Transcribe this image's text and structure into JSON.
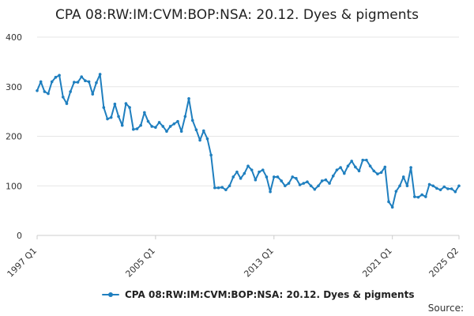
{
  "chart_data": {
    "type": "line",
    "title": "CPA 08:RW:IM:CVM:BOP:NSA: 20.12. Dyes & pigments",
    "xlabel": "",
    "ylabel": "",
    "ylim": [
      0,
      400
    ],
    "y_ticks": [
      0,
      100,
      200,
      300,
      400
    ],
    "x_tick_labels": [
      "1997 Q1",
      "2005 Q1",
      "2013 Q1",
      "2021 Q1",
      "2025 Q2"
    ],
    "grid": true,
    "legend_position": "bottom",
    "series_color": "#1f7fbf",
    "series": [
      {
        "name": "CPA 08:RW:IM:CVM:BOP:NSA: 20.12. Dyes & pigments",
        "values": [
          292,
          310,
          290,
          286,
          310,
          319,
          323,
          279,
          266,
          290,
          309,
          309,
          320,
          312,
          310,
          285,
          308,
          325,
          258,
          235,
          238,
          265,
          240,
          222,
          266,
          258,
          214,
          215,
          222,
          248,
          230,
          220,
          218,
          228,
          220,
          210,
          220,
          225,
          230,
          210,
          240,
          276,
          232,
          213,
          192,
          211,
          195,
          162,
          96,
          96,
          97,
          92,
          100,
          118,
          128,
          115,
          125,
          140,
          132,
          112,
          128,
          132,
          118,
          88,
          118,
          118,
          110,
          100,
          105,
          118,
          115,
          102,
          105,
          108,
          100,
          93,
          100,
          110,
          112,
          105,
          120,
          132,
          137,
          125,
          140,
          150,
          138,
          130,
          152,
          152,
          140,
          130,
          124,
          127,
          138,
          68,
          57,
          89,
          100,
          118,
          100,
          137,
          78,
          77,
          82,
          78,
          103,
          100,
          95,
          92,
          98,
          94,
          94,
          88,
          100
        ]
      }
    ],
    "source_label": "Source:"
  },
  "colors": {
    "series": "#1f7fbf",
    "grid": "#e6e6e6",
    "axis": "#cccccc"
  }
}
